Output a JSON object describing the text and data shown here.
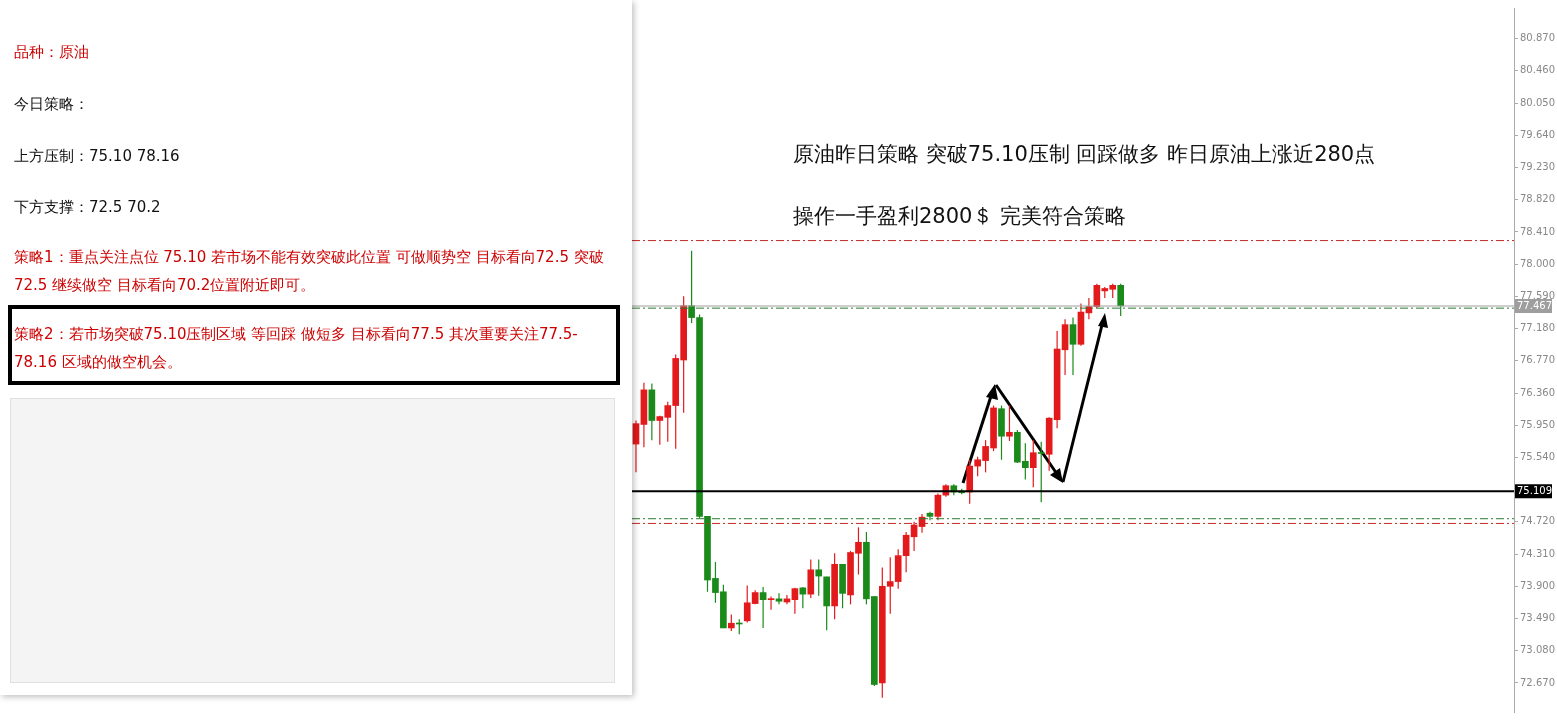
{
  "chart_data": {
    "type": "candlestick",
    "categories": [
      null,
      null,
      null,
      null,
      null,
      null,
      null,
      null,
      null,
      null,
      null,
      null,
      null,
      null,
      null,
      null,
      null,
      null,
      null,
      null,
      null,
      null,
      null,
      null,
      null,
      null,
      null,
      null,
      null,
      null,
      null,
      null,
      null,
      null,
      null,
      null,
      null,
      null,
      null,
      null,
      null,
      null,
      null,
      null,
      null,
      null,
      null,
      null,
      null,
      null,
      null,
      null,
      null,
      null,
      null,
      null,
      null,
      null,
      null,
      null,
      null,
      null,
      null,
      null,
      null,
      null,
      null,
      null,
      null,
      null,
      null,
      null,
      null,
      null,
      null,
      null,
      null,
      null,
      null,
      null,
      null,
      null,
      null,
      null,
      null,
      null,
      null,
      null,
      null,
      null,
      null,
      null,
      null,
      null,
      null,
      null,
      null,
      null,
      null,
      null,
      null,
      null,
      null,
      null,
      null,
      null,
      null,
      null,
      null,
      null,
      null
    ],
    "ohlc": [
      [
        75.71,
        76.01,
        75.35,
        75.97
      ],
      [
        75.96,
        76.49,
        75.67,
        76.4
      ],
      [
        76.4,
        76.48,
        75.76,
        76.01
      ],
      [
        76.01,
        76.07,
        75.7,
        76.06
      ],
      [
        76.05,
        76.25,
        75.74,
        76.2
      ],
      [
        76.2,
        76.85,
        75.65,
        76.8
      ],
      [
        76.78,
        77.59,
        76.11,
        77.47
      ],
      [
        77.47,
        78.17,
        77.25,
        77.32
      ],
      [
        77.32,
        77.36,
        74.77,
        74.79
      ],
      [
        74.79,
        74.79,
        73.83,
        73.98
      ],
      [
        74.0,
        74.21,
        73.69,
        73.82
      ],
      [
        73.83,
        73.92,
        73.37,
        73.37
      ],
      [
        73.37,
        73.54,
        73.33,
        73.43
      ],
      [
        73.43,
        73.48,
        73.29,
        73.42
      ],
      [
        73.46,
        73.91,
        73.44,
        73.69
      ],
      [
        73.68,
        73.85,
        73.67,
        73.82
      ],
      [
        73.82,
        73.89,
        73.37,
        73.73
      ],
      [
        73.73,
        73.77,
        73.6,
        73.74
      ],
      [
        73.74,
        73.81,
        73.67,
        73.71
      ],
      [
        73.7,
        73.79,
        73.67,
        73.74
      ],
      [
        73.73,
        73.88,
        73.55,
        73.87
      ],
      [
        73.88,
        73.89,
        73.62,
        73.8
      ],
      [
        73.8,
        74.24,
        73.75,
        74.11
      ],
      [
        74.11,
        74.24,
        73.78,
        74.03
      ],
      [
        74.02,
        74.02,
        73.34,
        73.65
      ],
      [
        73.65,
        74.32,
        73.48,
        74.18
      ],
      [
        74.18,
        74.18,
        73.62,
        73.81
      ],
      [
        73.79,
        74.35,
        73.67,
        74.33
      ],
      [
        74.32,
        74.65,
        74.05,
        74.46
      ],
      [
        74.46,
        74.59,
        73.67,
        73.74
      ],
      [
        73.77,
        73.77,
        72.63,
        72.65
      ],
      [
        72.67,
        74.14,
        72.48,
        73.9
      ],
      [
        73.9,
        74.27,
        73.55,
        73.96
      ],
      [
        73.96,
        74.37,
        73.87,
        74.29
      ],
      [
        74.29,
        74.59,
        74.08,
        74.55
      ],
      [
        74.53,
        74.72,
        74.35,
        74.68
      ],
      [
        74.66,
        74.82,
        74.58,
        74.78
      ],
      [
        74.83,
        74.85,
        74.74,
        74.79
      ],
      [
        74.79,
        75.08,
        74.74,
        75.06
      ],
      [
        75.06,
        75.2,
        75.04,
        75.18
      ],
      [
        75.18,
        75.2,
        75.06,
        75.1
      ],
      [
        75.11,
        75.14,
        75.07,
        75.09
      ],
      [
        75.1,
        75.51,
        74.95,
        75.43
      ],
      [
        75.43,
        75.55,
        75.3,
        75.51
      ],
      [
        75.5,
        75.76,
        75.35,
        75.68
      ],
      [
        75.66,
        76.2,
        75.62,
        76.17
      ],
      [
        76.16,
        76.2,
        75.51,
        75.81
      ],
      [
        75.81,
        76.2,
        75.75,
        75.86
      ],
      [
        75.86,
        75.89,
        75.47,
        75.48
      ],
      [
        75.49,
        75.72,
        75.26,
        75.41
      ],
      [
        75.41,
        75.76,
        75.16,
        75.6
      ],
      [
        75.6,
        75.74,
        74.97,
        75.59
      ],
      [
        75.58,
        76.05,
        75.37,
        76.04
      ],
      [
        76.02,
        77.15,
        75.91,
        76.92
      ],
      [
        76.91,
        77.3,
        76.59,
        77.23
      ],
      [
        77.23,
        77.32,
        76.59,
        76.98
      ],
      [
        76.98,
        77.5,
        76.96,
        77.39
      ],
      [
        77.38,
        77.57,
        77.3,
        77.46
      ],
      [
        77.46,
        77.75,
        77.44,
        77.73
      ],
      [
        77.66,
        77.71,
        77.57,
        77.69
      ],
      [
        77.68,
        77.75,
        77.57,
        77.73
      ],
      [
        77.73,
        77.75,
        77.34,
        77.47
      ],
      null,
      null,
      null,
      null,
      null,
      null,
      null,
      null,
      null,
      null,
      null,
      null,
      null,
      null,
      null,
      null,
      null,
      null,
      null,
      null,
      null,
      null,
      null,
      null,
      null,
      null,
      null,
      null,
      null,
      null,
      null,
      null,
      null,
      null,
      null,
      null,
      null,
      null,
      null,
      null,
      null,
      null,
      null,
      null,
      null,
      null,
      null,
      null,
      null
    ],
    "colors": [
      "#e31a1c",
      "#e31a1c",
      "#1a8a1a",
      "#e31a1c",
      "#e31a1c",
      "#e31a1c",
      "#e31a1c",
      "#1a8a1a",
      "#1a8a1a",
      "#1a8a1a",
      "#1a8a1a",
      "#1a8a1a",
      "#e31a1c",
      "#1a8a1a",
      "#e31a1c",
      "#e31a1c",
      "#1a8a1a",
      "#e31a1c",
      "#1a8a1a",
      "#e31a1c",
      "#e31a1c",
      "#1a8a1a",
      "#e31a1c",
      "#1a8a1a",
      "#1a8a1a",
      "#e31a1c",
      "#1a8a1a",
      "#e31a1c",
      "#e31a1c",
      "#1a8a1a",
      "#1a8a1a",
      "#e31a1c",
      "#e31a1c",
      "#e31a1c",
      "#e31a1c",
      "#e31a1c",
      "#e31a1c",
      "#1a8a1a",
      "#e31a1c",
      "#e31a1c",
      "#1a8a1a",
      "#1a8a1a",
      "#e31a1c",
      "#e31a1c",
      "#e31a1c",
      "#e31a1c",
      "#1a8a1a",
      "#e31a1c",
      "#1a8a1a",
      "#1a8a1a",
      "#e31a1c",
      "#1a8a1a",
      "#e31a1c",
      "#e31a1c",
      "#e31a1c",
      "#1a8a1a",
      "#e31a1c",
      "#e31a1c",
      "#e31a1c",
      "#e31a1c",
      "#e31a1c",
      "#1a8a1a",
      null,
      null,
      null,
      null,
      null,
      null,
      null,
      null,
      null,
      null,
      null,
      null,
      null,
      null,
      null,
      null,
      null,
      null,
      null,
      null,
      null,
      null,
      null,
      null,
      null,
      null,
      null,
      null,
      null,
      null,
      null,
      null,
      null,
      null,
      null,
      null,
      null,
      null,
      null,
      null,
      null,
      null,
      null,
      null,
      null,
      null,
      null,
      null,
      null
    ],
    "ylim": [
      72.3,
      81.26
    ],
    "yticks": [
      {
        "value": 72.67,
        "label": "72.670"
      },
      {
        "value": 73.08,
        "label": "73.080"
      },
      {
        "value": 73.49,
        "label": "73.490"
      },
      {
        "value": 73.9,
        "label": "73.900"
      },
      {
        "value": 74.31,
        "label": "74.310"
      },
      {
        "value": 74.72,
        "label": "74.720"
      },
      {
        "value": 75.54,
        "label": "75.540"
      },
      {
        "value": 75.95,
        "label": "75.950"
      },
      {
        "value": 76.36,
        "label": "76.360"
      },
      {
        "value": 76.77,
        "label": "76.770"
      },
      {
        "value": 77.18,
        "label": "77.180"
      },
      {
        "value": 77.59,
        "label": "77.590"
      },
      {
        "value": 78.0,
        "label": "78.000"
      },
      {
        "value": 78.41,
        "label": "78.410"
      },
      {
        "value": 78.82,
        "label": "78.820"
      },
      {
        "value": 79.23,
        "label": "79.230"
      },
      {
        "value": 79.64,
        "label": "79.640"
      },
      {
        "value": 80.05,
        "label": "80.050"
      },
      {
        "value": 80.46,
        "label": "80.460"
      },
      {
        "value": 80.87,
        "label": "80.870"
      }
    ],
    "tick_labels": "y",
    "ref_lines": [
      {
        "axis": "y",
        "value": 78.3,
        "color": "#c62828",
        "line_style": "dashed"
      },
      {
        "axis": "y",
        "value": 77.467,
        "label": "77.467",
        "color": "#9e9e9e",
        "line_style": "solid"
      },
      {
        "axis": "y",
        "value": 77.44,
        "color": "#2e7d32",
        "line_style": "dashed"
      },
      {
        "axis": "y",
        "value": 75.109,
        "label": "75.109",
        "color": "#000000",
        "line_style": "solid"
      },
      {
        "axis": "y",
        "value": 74.76,
        "color": "#2e7d32",
        "line_style": "dashed"
      },
      {
        "axis": "y",
        "value": 74.7,
        "color": "#c62828",
        "line_style": "dashed"
      }
    ],
    "annotations": [
      "品种：原油",
      "今日策略：",
      "上方压制：75.10   78.16",
      "下方支撑：72.5     70.2",
      "策略1：重点关注点位 75.10 若市场不能有效突破此位置 可做顺势空  目标看向72.5 突破72.5 继续做空 目标看向70.2位置附近即可。",
      "策略2：若市场突破75.10压制区域 等回踩  做短多  目标看向77.5  其次重要关注77.5-78.16 区域的做空机会。",
      "原油昨日策略 突破75.10压制 回踩做多 昨日原油上涨近280点",
      "操作一手盈利2800＄ 完美符合策略"
    ]
  }
}
